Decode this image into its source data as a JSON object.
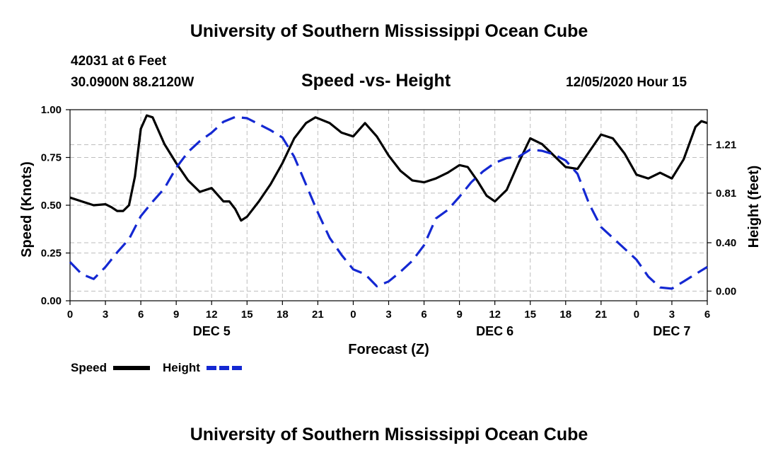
{
  "header": {
    "title": "University of Southern Mississippi Ocean Cube",
    "station": "42031 at 6 Feet",
    "location": "30.0900N 88.2120W",
    "subtitle": "Speed -vs- Height",
    "datetime": "12/05/2020 Hour 15"
  },
  "footer": {
    "title": "University of Southern Mississippi Ocean Cube"
  },
  "chart_data": {
    "type": "line",
    "title": "Speed -vs- Height",
    "xlabel": "Forecast (Z)",
    "ylabel_left": "Speed (Knots)",
    "ylabel_right": "Height (feet)",
    "x_range_hours": [
      0,
      54
    ],
    "x_ticks": [
      {
        "h": 0,
        "label": "0"
      },
      {
        "h": 3,
        "label": "3"
      },
      {
        "h": 6,
        "label": "6"
      },
      {
        "h": 9,
        "label": "9"
      },
      {
        "h": 12,
        "label": "12"
      },
      {
        "h": 15,
        "label": "15"
      },
      {
        "h": 18,
        "label": "18"
      },
      {
        "h": 21,
        "label": "21"
      },
      {
        "h": 24,
        "label": "0"
      },
      {
        "h": 27,
        "label": "3"
      },
      {
        "h": 30,
        "label": "6"
      },
      {
        "h": 33,
        "label": "9"
      },
      {
        "h": 36,
        "label": "12"
      },
      {
        "h": 39,
        "label": "15"
      },
      {
        "h": 42,
        "label": "18"
      },
      {
        "h": 45,
        "label": "21"
      },
      {
        "h": 48,
        "label": "0"
      },
      {
        "h": 51,
        "label": "3"
      },
      {
        "h": 54,
        "label": "6"
      }
    ],
    "day_labels": [
      {
        "h": 12,
        "label": "DEC 5"
      },
      {
        "h": 36,
        "label": "DEC 6"
      },
      {
        "h": 51,
        "label": "DEC 7"
      }
    ],
    "y_left": {
      "range": [
        0,
        1
      ],
      "ticks": [
        0,
        0.25,
        0.5,
        0.75,
        1
      ],
      "tick_labels": [
        "0.00",
        "0.25",
        "0.50",
        "0.75",
        "1.00"
      ]
    },
    "y_right": {
      "range": [
        -0.08,
        1.5
      ],
      "ticks": [
        0,
        0.4,
        0.81,
        1.21
      ],
      "tick_labels": [
        "0.00",
        "0.40",
        "0.81",
        "1.21"
      ]
    },
    "grid": true,
    "legend": {
      "position": "bottom-left",
      "entries": [
        "Speed",
        "Height"
      ]
    },
    "series": [
      {
        "name": "Speed",
        "axis": "left",
        "color": "#000000",
        "dash": "solid",
        "points": [
          [
            0,
            0.54
          ],
          [
            1,
            0.52
          ],
          [
            2,
            0.5
          ],
          [
            3,
            0.505
          ],
          [
            3.5,
            0.49
          ],
          [
            4,
            0.47
          ],
          [
            4.5,
            0.47
          ],
          [
            5,
            0.5
          ],
          [
            5.5,
            0.65
          ],
          [
            6,
            0.9
          ],
          [
            6.5,
            0.97
          ],
          [
            7,
            0.96
          ],
          [
            8,
            0.82
          ],
          [
            9,
            0.72
          ],
          [
            10,
            0.63
          ],
          [
            11,
            0.57
          ],
          [
            12,
            0.59
          ],
          [
            13,
            0.52
          ],
          [
            13.5,
            0.52
          ],
          [
            14,
            0.48
          ],
          [
            14.5,
            0.42
          ],
          [
            15,
            0.44
          ],
          [
            16,
            0.52
          ],
          [
            17,
            0.61
          ],
          [
            18,
            0.72
          ],
          [
            19,
            0.85
          ],
          [
            20,
            0.93
          ],
          [
            20.8,
            0.96
          ],
          [
            22,
            0.93
          ],
          [
            23,
            0.88
          ],
          [
            24,
            0.86
          ],
          [
            25,
            0.93
          ],
          [
            26,
            0.86
          ],
          [
            27,
            0.76
          ],
          [
            28,
            0.68
          ],
          [
            29,
            0.63
          ],
          [
            30,
            0.62
          ],
          [
            31,
            0.64
          ],
          [
            32,
            0.67
          ],
          [
            33,
            0.71
          ],
          [
            33.7,
            0.7
          ],
          [
            34.5,
            0.63
          ],
          [
            35.3,
            0.55
          ],
          [
            36,
            0.52
          ],
          [
            37,
            0.58
          ],
          [
            38,
            0.72
          ],
          [
            39,
            0.85
          ],
          [
            40,
            0.82
          ],
          [
            41,
            0.76
          ],
          [
            42,
            0.7
          ],
          [
            43,
            0.69
          ],
          [
            44,
            0.78
          ],
          [
            45,
            0.87
          ],
          [
            46,
            0.85
          ],
          [
            47,
            0.77
          ],
          [
            48,
            0.66
          ],
          [
            49,
            0.64
          ],
          [
            50,
            0.67
          ],
          [
            51,
            0.64
          ],
          [
            52,
            0.74
          ],
          [
            53,
            0.91
          ],
          [
            53.5,
            0.94
          ],
          [
            54,
            0.93
          ]
        ]
      },
      {
        "name": "Height",
        "axis": "right",
        "color": "#1428d2",
        "dash": "dashed",
        "points": [
          [
            0,
            0.24
          ],
          [
            1,
            0.14
          ],
          [
            2,
            0.1
          ],
          [
            3,
            0.2
          ],
          [
            4,
            0.32
          ],
          [
            5,
            0.43
          ],
          [
            6,
            0.62
          ],
          [
            7,
            0.74
          ],
          [
            8,
            0.85
          ],
          [
            9,
            1.02
          ],
          [
            10,
            1.15
          ],
          [
            11,
            1.24
          ],
          [
            12,
            1.31
          ],
          [
            13,
            1.4
          ],
          [
            14,
            1.44
          ],
          [
            15,
            1.43
          ],
          [
            16,
            1.38
          ],
          [
            17,
            1.33
          ],
          [
            18,
            1.27
          ],
          [
            19,
            1.11
          ],
          [
            20,
            0.88
          ],
          [
            21,
            0.65
          ],
          [
            22,
            0.44
          ],
          [
            23,
            0.3
          ],
          [
            24,
            0.18
          ],
          [
            25,
            0.14
          ],
          [
            26,
            0.04
          ],
          [
            27,
            0.08
          ],
          [
            28,
            0.16
          ],
          [
            29,
            0.25
          ],
          [
            30,
            0.38
          ],
          [
            31,
            0.6
          ],
          [
            32,
            0.67
          ],
          [
            33,
            0.78
          ],
          [
            34,
            0.9
          ],
          [
            35,
            0.99
          ],
          [
            36,
            1.06
          ],
          [
            37,
            1.1
          ],
          [
            38,
            1.11
          ],
          [
            39,
            1.17
          ],
          [
            40,
            1.16
          ],
          [
            41,
            1.13
          ],
          [
            42,
            1.08
          ],
          [
            43,
            0.97
          ],
          [
            44,
            0.72
          ],
          [
            45,
            0.53
          ],
          [
            46,
            0.44
          ],
          [
            47,
            0.35
          ],
          [
            48,
            0.26
          ],
          [
            49,
            0.12
          ],
          [
            50,
            0.03
          ],
          [
            51,
            0.02
          ],
          [
            52,
            0.08
          ],
          [
            53,
            0.14
          ],
          [
            54,
            0.2
          ]
        ]
      }
    ]
  }
}
